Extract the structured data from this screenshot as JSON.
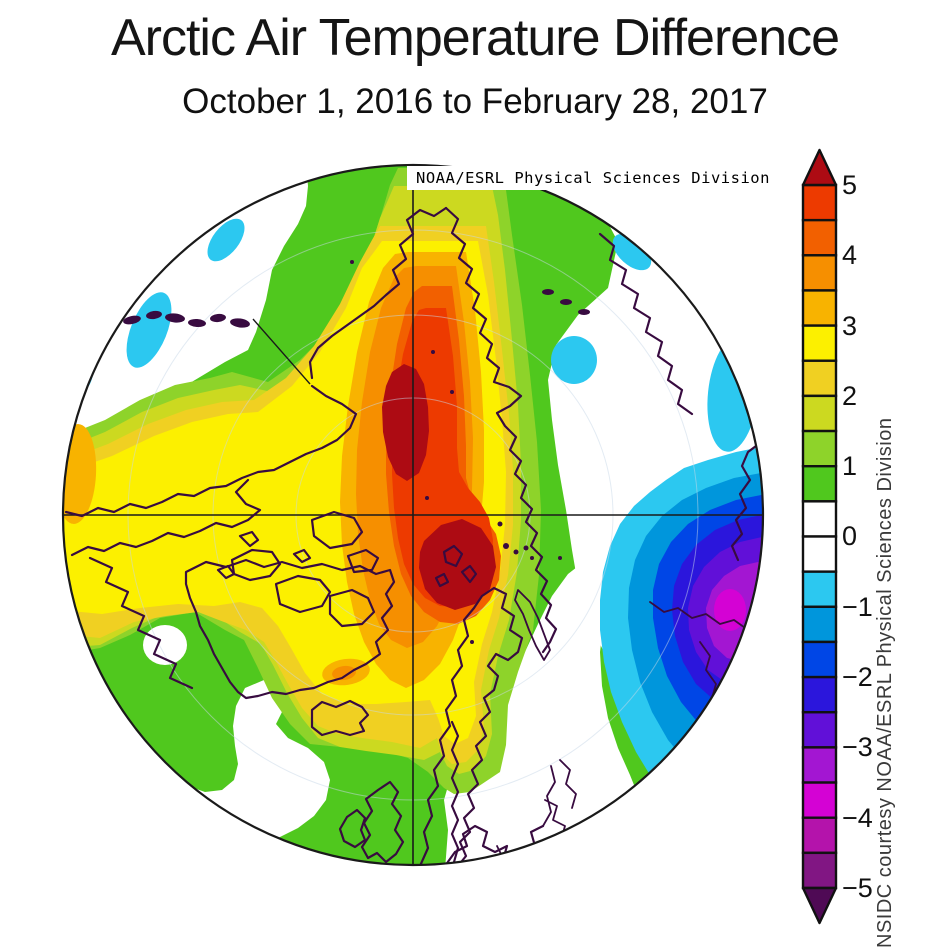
{
  "title": "Arctic Air Temperature Difference",
  "subtitle": "October 1, 2016 to February 28, 2017",
  "map": {
    "source_label": "NOAA/ESRL Physical Sciences Division",
    "credit": "NSIDC courtesy NOAA/ESRL Physical Sciences Division",
    "projection": "north-polar-stereographic"
  },
  "colorbar": {
    "ticks": [
      "5",
      "4",
      "3",
      "2",
      "1",
      "0",
      "−1",
      "−2",
      "−3",
      "−4",
      "−5"
    ],
    "range_max": 5,
    "range_min": -5,
    "segment_colors": [
      "#ed3a00",
      "#f26000",
      "#f68f00",
      "#f8b300",
      "#fcf000",
      "#f0d022",
      "#ccd920",
      "#8ed32a",
      "#50c81e",
      "#ffffff",
      "#ffffff",
      "#2cc8f0",
      "#0096dc",
      "#0046e6",
      "#2b16dc",
      "#6110d8",
      "#a316d2",
      "#d402d4",
      "#b413ab",
      "#811683"
    ],
    "arrow_top_color": "#ad0b13",
    "arrow_bottom_color": "#4f0a55"
  },
  "colors": {
    "coastline": "#380b40",
    "map_outline": "#1a1a1a",
    "graticule": "#c8d8e8"
  }
}
